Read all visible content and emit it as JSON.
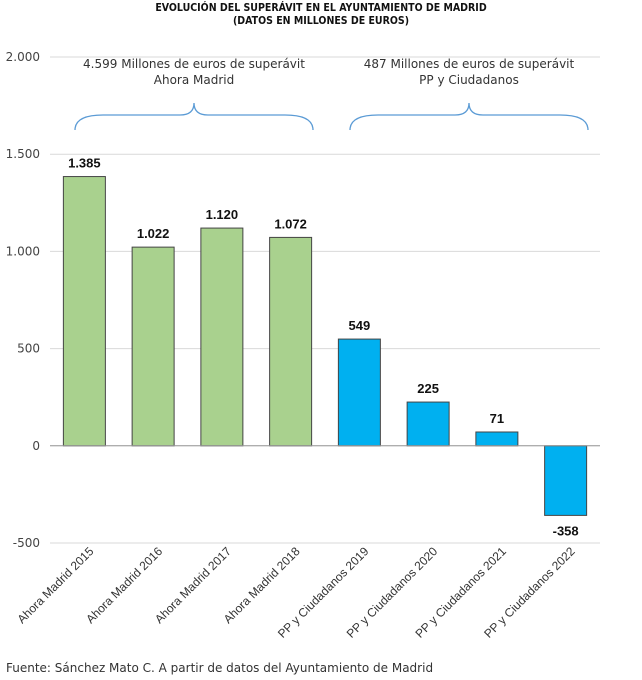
{
  "title_line1": "EVOLUCIÓN DEL SUPERÁVIT EN EL AYUNTAMIENTO DE MADRID",
  "title_line2": "(DATOS EN MILLONES DE EUROS)",
  "source": "Fuente: Sánchez Mato C. A partir de datos del Ayuntamiento de Madrid",
  "groups": [
    {
      "line1": "4.599 Millones de euros de superávit",
      "line2": "Ahora Madrid"
    },
    {
      "line1": "487 Millones de euros de superávit",
      "line2": "PP y Ciudadanos"
    }
  ],
  "colors": {
    "ahora_madrid": "#a9d18e",
    "pp_ciudadanos": "#00b0f0",
    "bar_border": "#444444",
    "grid": "#d9d9d9",
    "brace": "#5b9bd5"
  },
  "chart_data": {
    "type": "bar",
    "title": "EVOLUCIÓN DEL SUPERÁVIT EN EL AYUNTAMIENTO DE MADRID (DATOS EN MILLONES DE EUROS)",
    "xlabel": "",
    "ylabel": "",
    "ylim": [
      -500,
      2000
    ],
    "yticks": [
      -500,
      0,
      500,
      1000,
      1500,
      2000
    ],
    "ytick_labels": [
      "-500",
      "0",
      "500",
      "1.000",
      "1.500",
      "2.000"
    ],
    "grid": true,
    "categories": [
      "Ahora Madrid 2015",
      "Ahora Madrid 2016",
      "Ahora Madrid 2017",
      "Ahora Madrid 2018",
      "PP y Ciudadanos 2019",
      "PP y Ciudadanos 2020",
      "PP y Ciudadanos 2021",
      "PP y Ciudadanos 2022"
    ],
    "values": [
      1385,
      1022,
      1120,
      1072,
      549,
      225,
      71,
      -358
    ],
    "value_labels": [
      "1.385",
      "1.022",
      "1.120",
      "1.072",
      "549",
      "225",
      "71",
      "-358"
    ],
    "bar_groups": [
      "ahora_madrid",
      "ahora_madrid",
      "ahora_madrid",
      "ahora_madrid",
      "pp_ciudadanos",
      "pp_ciudadanos",
      "pp_ciudadanos",
      "pp_ciudadanos"
    ]
  }
}
